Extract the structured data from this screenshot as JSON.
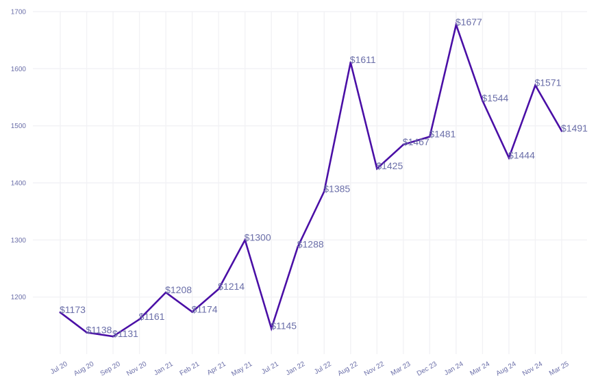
{
  "chart_data": {
    "type": "line",
    "title": "",
    "xlabel": "",
    "ylabel": "",
    "categories": [
      "Jul 20",
      "Aug 20",
      "Sep 20",
      "Nov 20",
      "Jan 21",
      "Feb 21",
      "Apr 21",
      "May 21",
      "Jul 21",
      "Jan 22",
      "Jul 22",
      "Aug 22",
      "Nov 22",
      "Mar 23",
      "Dec 23",
      "Jan 24",
      "Mar 24",
      "Aug 24",
      "Nov 24",
      "Mar 25"
    ],
    "series": [
      {
        "values": [
          1173,
          1138,
          1131,
          1161,
          1208,
          1174,
          1214,
          1300,
          1145,
          1288,
          1385,
          1611,
          1425,
          1467,
          1481,
          1677,
          1544,
          1444,
          1571,
          1491
        ],
        "data_labels": [
          "$1173",
          "$1138",
          "$1131",
          "$1161",
          "$1208",
          "$1174",
          "$1214",
          "$1300",
          "$1145",
          "$1288",
          "$1385",
          "$1611",
          "$1425",
          "$1467",
          "$1481",
          "$1677",
          "$1544",
          "$1444",
          "$1571",
          "$1491"
        ]
      }
    ],
    "ylim": [
      1100,
      1700
    ],
    "yticks": [
      1200,
      1300,
      1400,
      1500,
      1600,
      1700
    ],
    "grid": true,
    "legend": "none",
    "colors": {
      "line": "#4a0fa6",
      "labels": "#6a6ea8",
      "grid": "#f2f2f5"
    }
  }
}
